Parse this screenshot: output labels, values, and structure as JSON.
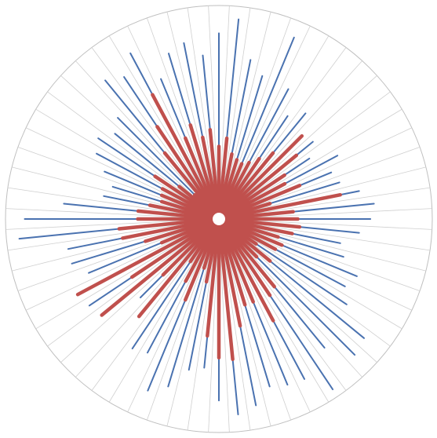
{
  "chart_data": {
    "type": "radar",
    "subtype": "filled-radial-spokes",
    "spoke_count": 64,
    "radial_range": [
      0,
      100
    ],
    "grid": true,
    "legend": "none",
    "series": [
      {
        "color": "#4a72b0",
        "values": [
          87,
          94,
          76,
          70,
          92,
          69,
          58,
          64,
          44,
          57,
          51,
          63,
          57,
          59,
          67,
          73,
          71,
          66,
          58,
          61,
          70,
          67,
          72,
          88,
          90,
          78,
          96,
          85,
          84,
          82,
          89,
          92,
          85,
          70,
          72,
          82,
          87,
          71,
          73,
          51,
          52,
          64,
          73,
          65,
          66,
          72,
          72,
          94,
          91,
          73,
          55,
          52,
          58,
          65,
          68,
          63,
          67,
          84,
          80,
          88,
          71,
          81,
          84,
          77
        ]
      },
      {
        "color": "#c0504d",
        "values": [
          34,
          38,
          31,
          29,
          28,
          30,
          34,
          40,
          55,
          47,
          37,
          35,
          41,
          25,
          58,
          35,
          37,
          38,
          35,
          29,
          32,
          30,
          21,
          31,
          25,
          41,
          43,
          54,
          42,
          42,
          51,
          66,
          65,
          55,
          30,
          24,
          41,
          33,
          24,
          59,
          37,
          71,
          49,
          75,
          29,
          36,
          46,
          47,
          38,
          38,
          33,
          28,
          29,
          30,
          36,
          24,
          16,
          40,
          52,
          66,
          41,
          46,
          39,
          42
        ]
      }
    ]
  }
}
